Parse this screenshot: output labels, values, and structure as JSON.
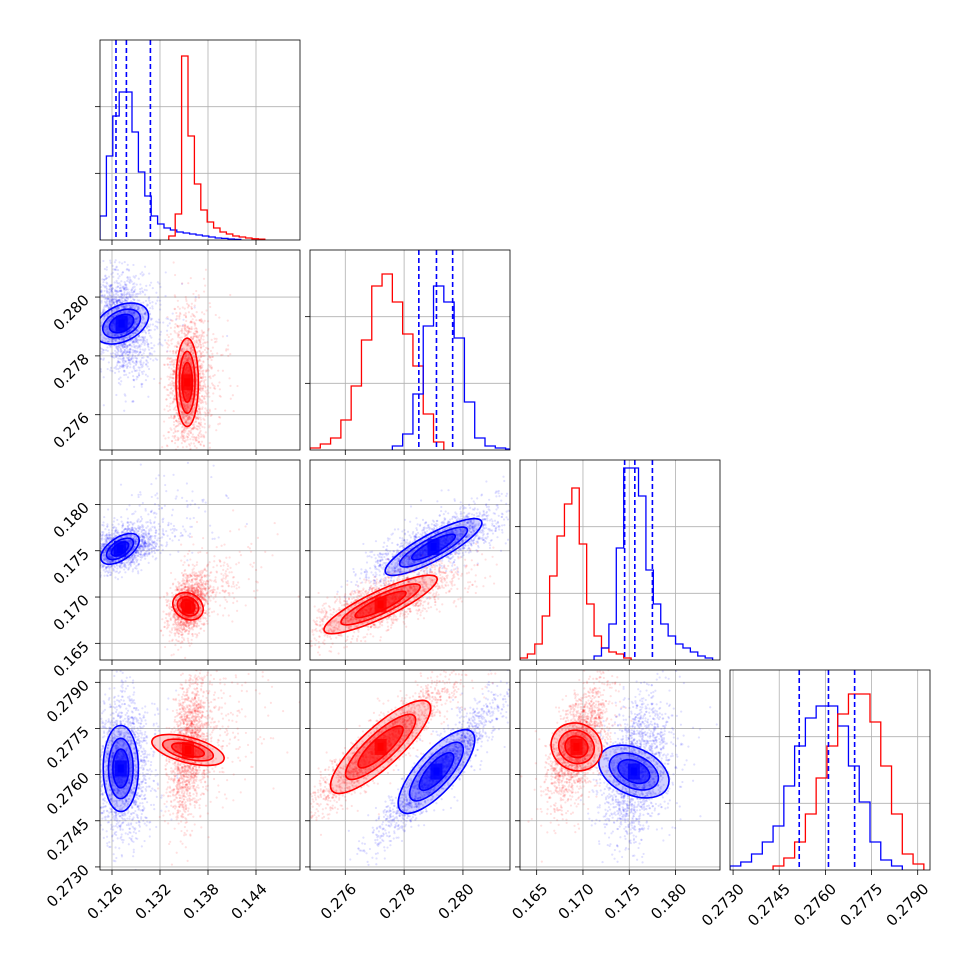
{
  "chart_data": {
    "type": "corner",
    "grid": true,
    "series": [
      {
        "color": "#0000ff"
      },
      {
        "color": "#ff0000"
      }
    ],
    "params": [
      {
        "range": [
          0.1245,
          0.1495
        ],
        "ticks": [
          0.126,
          0.132,
          0.138,
          0.144
        ],
        "tick_labels": [
          "0.126",
          "0.132",
          "0.138",
          "0.144"
        ]
      },
      {
        "range": [
          0.2748,
          0.2816
        ],
        "ticks": [
          0.276,
          0.278,
          0.28
        ],
        "tick_labels": [
          "0.276",
          "0.278",
          "0.280"
        ]
      },
      {
        "range": [
          0.1632,
          0.1848
        ],
        "ticks": [
          0.165,
          0.17,
          0.175,
          0.18
        ],
        "tick_labels": [
          "0.165",
          "0.170",
          "0.175",
          "0.180"
        ]
      },
      {
        "range": [
          0.2729,
          0.2794
        ],
        "ticks": [
          0.273,
          0.2745,
          0.276,
          0.2775,
          0.279
        ],
        "tick_labels": [
          "0.2730",
          "0.2745",
          "0.2760",
          "0.2775",
          "0.2790"
        ]
      }
    ],
    "diagonal": [
      {
        "param": 0,
        "quantile_lines": [
          0.1265,
          0.1278,
          0.1308
        ],
        "hist": [
          {
            "series": 0,
            "edges": [
              0.1245,
              0.1253,
              0.1261,
              0.1269,
              0.1277,
              0.1285,
              0.1293,
              0.1301,
              0.1309,
              0.1317,
              0.1325,
              0.1333,
              0.1341,
              0.1349,
              0.1357,
              0.1365,
              0.1373,
              0.1381,
              0.1389,
              0.1397,
              0.1405,
              0.1413,
              0.1421
            ],
            "counts": [
              0.12,
              0.42,
              0.62,
              0.74,
              0.74,
              0.54,
              0.34,
              0.22,
              0.12,
              0.08,
              0.06,
              0.05,
              0.04,
              0.035,
              0.03,
              0.025,
              0.02,
              0.015,
              0.01,
              0.008,
              0.005,
              0.003
            ]
          },
          {
            "series": 1,
            "edges": [
              0.1331,
              0.1339,
              0.1347,
              0.1355,
              0.1363,
              0.1371,
              0.1379,
              0.1387,
              0.1395,
              0.1403,
              0.1411,
              0.1419,
              0.1427,
              0.1435,
              0.1443,
              0.1451
            ],
            "counts": [
              0.02,
              0.13,
              0.92,
              0.52,
              0.28,
              0.15,
              0.09,
              0.06,
              0.04,
              0.03,
              0.02,
              0.015,
              0.01,
              0.006,
              0.004
            ]
          }
        ]
      },
      {
        "param": 1,
        "quantile_lines": [
          0.2785,
          0.2791,
          0.27965
        ],
        "hist": [
          {
            "series": 1,
            "edges": [
              0.2748,
              0.27515,
              0.2755,
              0.27585,
              0.2762,
              0.27655,
              0.2769,
              0.27725,
              0.2776,
              0.27795,
              0.2783,
              0.27865,
              0.279,
              0.27935
            ],
            "counts": [
              0.01,
              0.03,
              0.06,
              0.15,
              0.32,
              0.55,
              0.82,
              0.88,
              0.74,
              0.58,
              0.42,
              0.18,
              0.04
            ]
          },
          {
            "series": 0,
            "edges": [
              0.2776,
              0.27795,
              0.2783,
              0.27865,
              0.279,
              0.27935,
              0.2797,
              0.28005,
              0.2804,
              0.28075,
              0.2811,
              0.28145,
              0.2818
            ],
            "counts": [
              0.02,
              0.08,
              0.28,
              0.62,
              0.82,
              0.74,
              0.56,
              0.24,
              0.06,
              0.02,
              0.01,
              0.005
            ]
          }
        ]
      },
      {
        "param": 2,
        "quantile_lines": [
          0.1745,
          0.1756,
          0.1775
        ],
        "hist": [
          {
            "series": 1,
            "edges": [
              0.1632,
              0.164,
              0.1648,
              0.1656,
              0.1664,
              0.1672,
              0.168,
              0.1688,
              0.1696,
              0.1704,
              0.1712,
              0.172,
              0.1728,
              0.1736,
              0.1744,
              0.1752
            ],
            "counts": [
              0.01,
              0.03,
              0.08,
              0.22,
              0.42,
              0.62,
              0.78,
              0.86,
              0.58,
              0.28,
              0.12,
              0.06,
              0.04,
              0.03,
              0.01
            ]
          },
          {
            "series": 0,
            "edges": [
              0.1712,
              0.172,
              0.1728,
              0.1736,
              0.1744,
              0.1752,
              0.176,
              0.1768,
              0.1776,
              0.1784,
              0.1792,
              0.18,
              0.1808,
              0.1816,
              0.1824,
              0.1832,
              0.184
            ],
            "counts": [
              0.02,
              0.06,
              0.18,
              0.56,
              0.96,
              0.96,
              0.82,
              0.45,
              0.28,
              0.18,
              0.12,
              0.08,
              0.06,
              0.04,
              0.02,
              0.01
            ]
          }
        ]
      },
      {
        "param": 3,
        "quantile_lines": [
          0.27515,
          0.2761,
          0.27695
        ],
        "hist": [
          {
            "series": 0,
            "edges": [
              0.2729,
              0.27325,
              0.2736,
              0.27395,
              0.2743,
              0.27465,
              0.275,
              0.27535,
              0.2757,
              0.27605,
              0.2764,
              0.27675,
              0.2771,
              0.27745,
              0.2778,
              0.27815,
              0.2785
            ],
            "counts": [
              0.02,
              0.04,
              0.08,
              0.14,
              0.22,
              0.42,
              0.62,
              0.76,
              0.82,
              0.82,
              0.72,
              0.52,
              0.34,
              0.14,
              0.05,
              0.02
            ]
          },
          {
            "series": 1,
            "edges": [
              0.2743,
              0.27465,
              0.275,
              0.27535,
              0.2757,
              0.27605,
              0.2764,
              0.27675,
              0.2771,
              0.27745,
              0.2778,
              0.27815,
              0.2785,
              0.27885,
              0.2792
            ],
            "counts": [
              0.02,
              0.06,
              0.14,
              0.28,
              0.46,
              0.62,
              0.78,
              0.88,
              0.88,
              0.74,
              0.52,
              0.28,
              0.08,
              0.03
            ]
          }
        ]
      }
    ],
    "scatter_panels": [
      {
        "x_param": 0,
        "y_param": 1,
        "blobs": [
          {
            "series": 0,
            "center": [
              0.1272,
              0.2791
            ],
            "sigma_x": 0.001,
            "sigma_y": 0.00055,
            "rho": -0.25,
            "count": 1800,
            "tail_dx": 0.0035,
            "tail_dy": 0.0004
          },
          {
            "series": 1,
            "center": [
              0.1354,
              0.2771
            ],
            "sigma_x": 0.0007,
            "sigma_y": 0.00075,
            "rho": 0.0,
            "count": 1800,
            "tail_dx": 0.003,
            "tail_dy": 0.0006
          }
        ]
      },
      {
        "x_param": 0,
        "y_param": 2,
        "blobs": [
          {
            "series": 0,
            "center": [
              0.127,
              0.1752
            ],
            "sigma_x": 0.0012,
            "sigma_y": 0.0007,
            "rho": 0.3,
            "count": 1800,
            "tail_dx": 0.008,
            "tail_dy": 0.0045
          },
          {
            "series": 1,
            "center": [
              0.1355,
              0.169
            ],
            "sigma_x": 0.0007,
            "sigma_y": 0.001,
            "rho": 0.3,
            "count": 1800,
            "tail_dx": 0.006,
            "tail_dy": 0.0045
          }
        ]
      },
      {
        "x_param": 1,
        "y_param": 2,
        "blobs": [
          {
            "series": 0,
            "center": [
              0.279,
              0.1754
            ],
            "sigma_x": 0.0007,
            "sigma_y": 0.0012,
            "rho": 0.75,
            "count": 1800,
            "tail_dx": 0.0008,
            "tail_dy": 0.0025
          },
          {
            "series": 1,
            "center": [
              0.2772,
              0.1692
            ],
            "sigma_x": 0.0008,
            "sigma_y": 0.0012,
            "rho": 0.75,
            "count": 1800,
            "tail_dx": 0.0006,
            "tail_dy": 0.001
          }
        ]
      },
      {
        "x_param": 0,
        "y_param": 3,
        "blobs": [
          {
            "series": 0,
            "center": [
              0.1271,
              0.2762
            ],
            "sigma_x": 0.0011,
            "sigma_y": 0.0007,
            "rho": 0.0,
            "count": 1800,
            "tail_dx": 0.002,
            "tail_dy": 0.0005
          },
          {
            "series": 1,
            "center": [
              0.1355,
              0.2768
            ],
            "sigma_x": 0.0007,
            "sigma_y": 0.0007,
            "rho": 0.3,
            "count": 1800,
            "tail_dx": 0.007,
            "tail_dy": 0.001
          }
        ]
      },
      {
        "x_param": 1,
        "y_param": 3,
        "blobs": [
          {
            "series": 0,
            "center": [
              0.2791,
              0.2761
            ],
            "sigma_x": 0.00065,
            "sigma_y": 0.0007,
            "rho": 0.93,
            "count": 1800,
            "tail_dx": 0.0012,
            "tail_dy": 0.0012
          },
          {
            "series": 1,
            "center": [
              0.2772,
              0.2769
            ],
            "sigma_x": 0.0008,
            "sigma_y": 0.0007,
            "rho": 0.93,
            "count": 1800,
            "tail_dx": 0.0012,
            "tail_dy": 0.001
          }
        ]
      },
      {
        "x_param": 2,
        "y_param": 3,
        "blobs": [
          {
            "series": 0,
            "center": [
              0.1755,
              0.2761
            ],
            "sigma_x": 0.0011,
            "sigma_y": 0.0007,
            "rho": 0.3,
            "count": 1800,
            "tail_dx": 0.0035,
            "tail_dy": 0.0008
          },
          {
            "series": 1,
            "center": [
              0.1693,
              0.2769
            ],
            "sigma_x": 0.001,
            "sigma_y": 0.0006,
            "rho": 0.6,
            "count": 1800,
            "tail_dx": 0.002,
            "tail_dy": 0.001
          }
        ]
      }
    ]
  }
}
